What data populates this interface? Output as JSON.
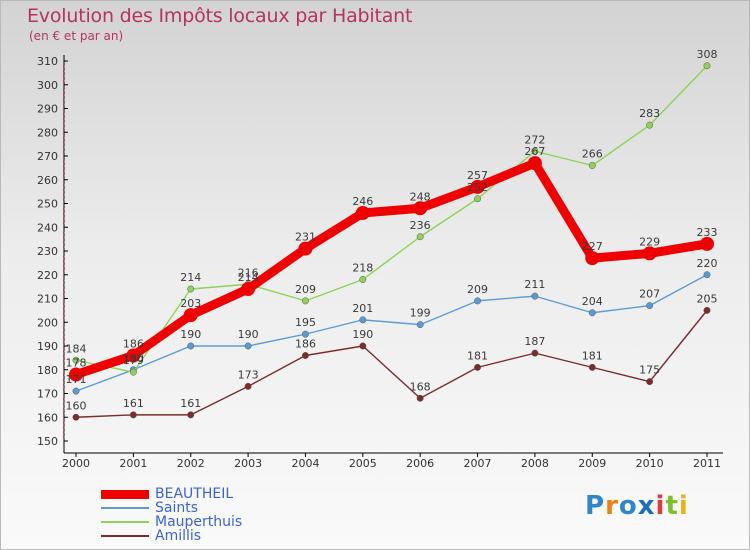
{
  "header": {
    "title": "Evolution des Impôts locaux par Habitant",
    "subtitle": "(en € et par an)"
  },
  "brand": {
    "text": "Proxiti",
    "letter_colors": [
      "#2f86c9",
      "#e8821a",
      "#2f86c9",
      "#1f6fb7",
      "#e03a3a",
      "#7bbf2a",
      "#e8b21a"
    ]
  },
  "chart_data": {
    "type": "line",
    "x": [
      "2000",
      "2001",
      "2002",
      "2003",
      "2004",
      "2005",
      "2006",
      "2007",
      "2008",
      "2009",
      "2010",
      "2011"
    ],
    "ylim": [
      150,
      310
    ],
    "yticks": [
      "150",
      "160",
      "170",
      "180",
      "190",
      "200",
      "210",
      "220",
      "230",
      "240",
      "250",
      "260",
      "270",
      "280",
      "290",
      "300",
      "310"
    ],
    "grid": false,
    "legend_position": "bottom-left",
    "series": [
      {
        "name": "BEAUTHEIL",
        "color": "#ee0000",
        "values": [
          178,
          186,
          203,
          214,
          231,
          246,
          248,
          257,
          267,
          227,
          229,
          233
        ],
        "labels": [
          "178",
          "186",
          "203",
          "214",
          "231",
          "246",
          "248",
          "257",
          "267",
          "227",
          "229",
          "233"
        ]
      },
      {
        "name": "Saints",
        "color": "#5b9bd5",
        "values": [
          171,
          180,
          190,
          190,
          195,
          201,
          199,
          209,
          211,
          204,
          207,
          220
        ],
        "labels": [
          "171",
          "180",
          "190",
          "190",
          "195",
          "201",
          "199",
          "209",
          "211",
          "204",
          "207",
          "220"
        ]
      },
      {
        "name": "Mauperthuis",
        "color": "#8fd15a",
        "values": [
          184,
          179,
          214,
          216,
          209,
          218,
          236,
          252,
          272,
          266,
          283,
          308
        ],
        "labels": [
          "184",
          "179",
          "214",
          "216",
          "209",
          "218",
          "236",
          "252",
          "272",
          "266",
          "283",
          "308"
        ]
      },
      {
        "name": "Amillis",
        "color": "#7b2c2c",
        "values": [
          160,
          161,
          161,
          173,
          186,
          190,
          168,
          181,
          187,
          181,
          175,
          205
        ],
        "labels": [
          "160",
          "161",
          "161",
          "173",
          "186",
          "190",
          "168",
          "181",
          "187",
          "181",
          "175",
          "205"
        ]
      }
    ]
  }
}
